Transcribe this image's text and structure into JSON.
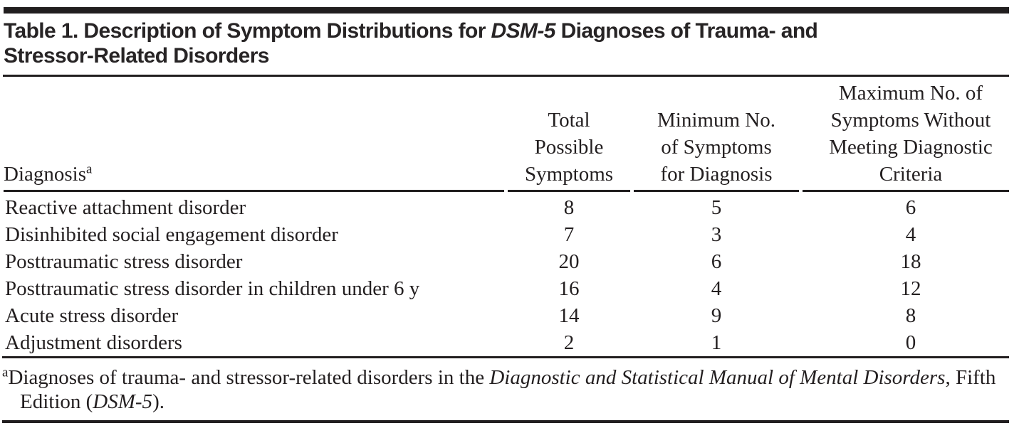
{
  "title": {
    "line1_pre_italic": "Table 1. Description of Symptom Distributions for ",
    "line1_italic": "DSM-5",
    "line1_post_italic": " Diagnoses of Trauma- and",
    "line2": "Stressor-Related Disorders"
  },
  "columns": [
    {
      "label": "Diagnosis",
      "superscript": "a"
    },
    {
      "label_lines": [
        "Total",
        "Possible",
        "Symptoms"
      ]
    },
    {
      "label_lines": [
        "Minimum No.",
        "of Symptoms",
        "for Diagnosis"
      ]
    },
    {
      "label_lines": [
        "Maximum No. of",
        "Symptoms Without",
        "Meeting Diagnostic",
        "Criteria"
      ]
    }
  ],
  "rows": [
    {
      "diagnosis": "Reactive attachment disorder",
      "total": "8",
      "min": "5",
      "max": "6"
    },
    {
      "diagnosis": "Disinhibited social engagement disorder",
      "total": "7",
      "min": "3",
      "max": "4"
    },
    {
      "diagnosis": "Posttraumatic stress disorder",
      "total": "20",
      "min": "6",
      "max": "18"
    },
    {
      "diagnosis": "Posttraumatic stress disorder in children under 6 y",
      "total": "16",
      "min": "4",
      "max": "12"
    },
    {
      "diagnosis": "Acute stress disorder",
      "total": "14",
      "min": "9",
      "max": "8"
    },
    {
      "diagnosis": "Adjustment disorders",
      "total": "2",
      "min": "1",
      "max": "0"
    }
  ],
  "footnote": {
    "marker": "a",
    "pre_italic": "Diagnoses of trauma- and stressor-related disorders in the ",
    "italic1": "Diagnostic and Statistical Manual of Mental Disorders",
    "mid": ", Fifth Edition (",
    "italic2": "DSM-5",
    "post": ")."
  },
  "colors": {
    "text": "#231f20",
    "rule": "#211e1f",
    "background": "#ffffff"
  }
}
